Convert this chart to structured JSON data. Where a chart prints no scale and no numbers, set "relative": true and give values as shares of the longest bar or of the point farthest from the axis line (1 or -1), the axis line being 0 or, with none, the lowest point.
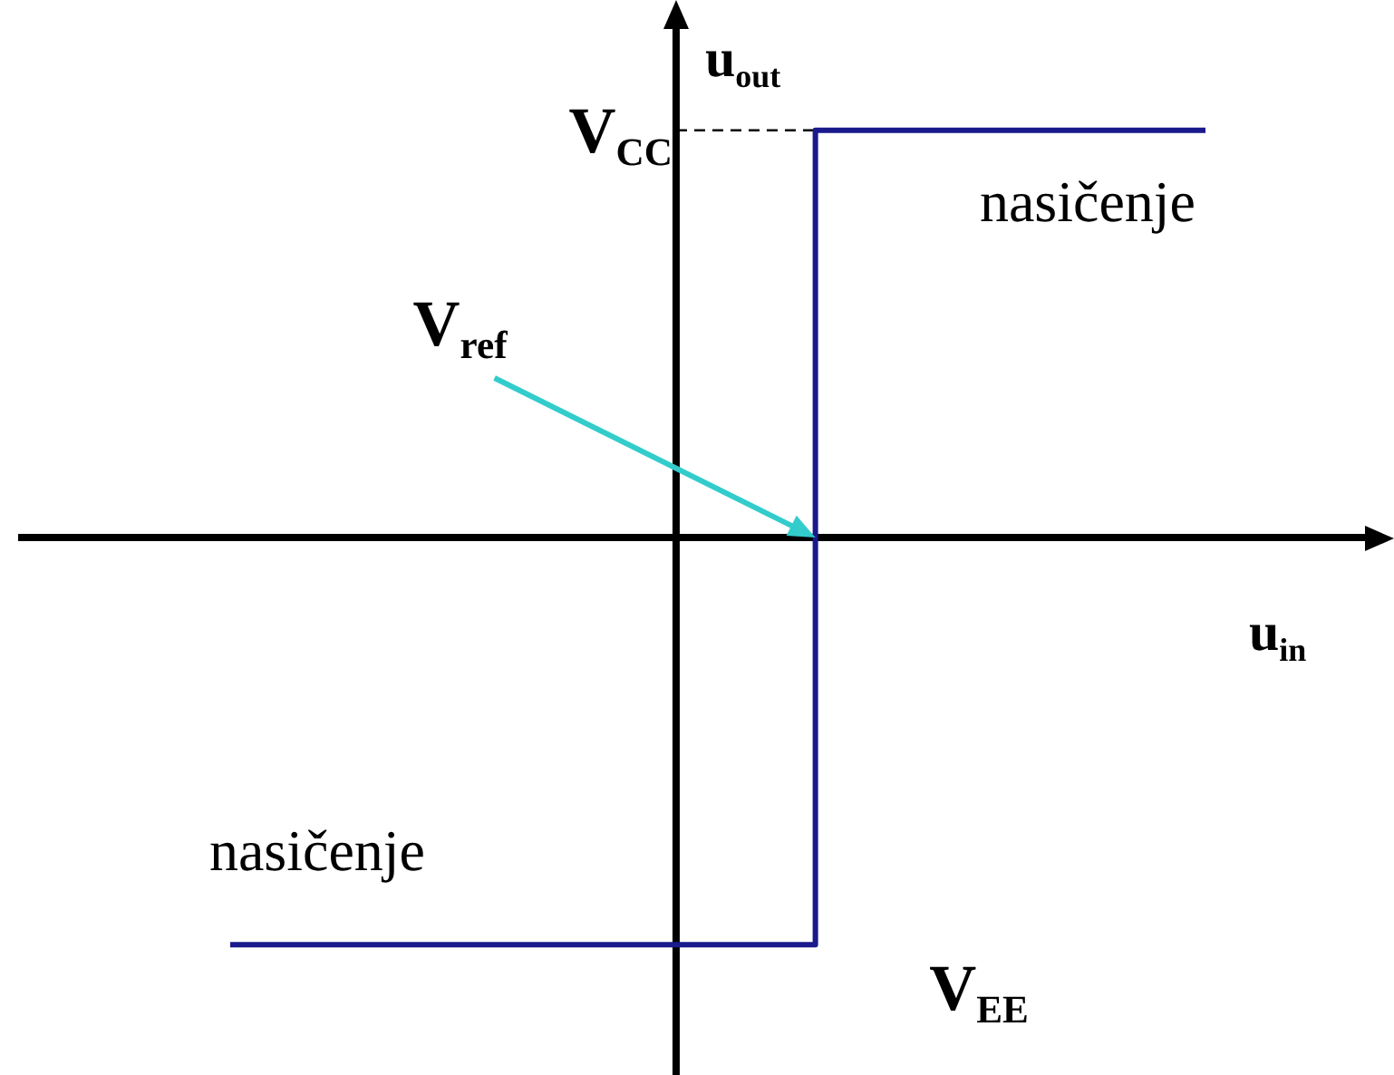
{
  "chart_data": {
    "type": "step",
    "relative": true,
    "categories": [
      null,
      null,
      null,
      null,
      null,
      null
    ],
    "tick_labels": false,
    "marker": "none",
    "xlabel": "u$_{in}$",
    "ylabel": "u$_{out}$",
    "series": [
      {
        "color": "#1a1a8c",
        "values": [
          -1,
          -1,
          -1,
          -1,
          1,
          1
        ]
      }
    ],
    "ref_lines": [
      {
        "axis": "y",
        "value": 1,
        "label": "V$_{CC}$",
        "color": "#000000",
        "line_style": "dashed"
      }
    ],
    "annotations": [
      "nasičenje",
      "nasičenje",
      "V$_{EE}$",
      "V$_{ref}$"
    ]
  }
}
